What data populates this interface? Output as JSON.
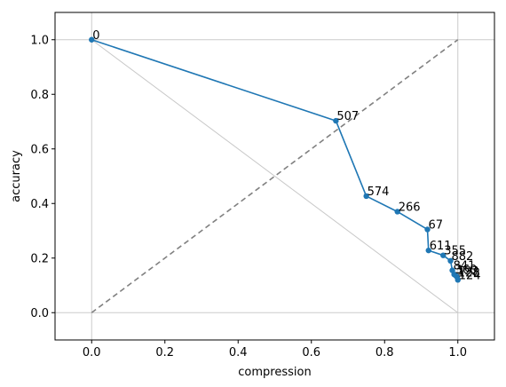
{
  "chart_data": {
    "type": "line",
    "xlabel": "compression",
    "ylabel": "accuracy",
    "xlim": [
      -0.1,
      1.1
    ],
    "ylim": [
      -0.1,
      1.1
    ],
    "xticks": [
      "0.0",
      "0.2",
      "0.4",
      "0.6",
      "0.8",
      "1.0"
    ],
    "yticks": [
      "0.0",
      "0.2",
      "0.4",
      "0.6",
      "0.8",
      "1.0"
    ],
    "grid": "light gray lines at x=0, x=1, y=0, y=1",
    "colors": {
      "series": "#1f77b4",
      "reference_dashed": "#808080",
      "reference_thin": "#c8c8c8"
    },
    "reference_lines": [
      {
        "style": "dashed",
        "from": [
          0,
          0
        ],
        "to": [
          1,
          1
        ]
      },
      {
        "style": "solid-thin",
        "from": [
          0,
          1
        ],
        "to": [
          1,
          0
        ]
      }
    ],
    "series": [
      {
        "points": [
          {
            "x": 0.0,
            "y": 1.0,
            "label": "0"
          },
          {
            "x": 0.667,
            "y": 0.703,
            "label": "507"
          },
          {
            "x": 0.75,
            "y": 0.427,
            "label": "574"
          },
          {
            "x": 0.835,
            "y": 0.37,
            "label": "266"
          },
          {
            "x": 0.917,
            "y": 0.305,
            "label": "67"
          },
          {
            "x": 0.92,
            "y": 0.228,
            "label": "611"
          },
          {
            "x": 0.96,
            "y": 0.21,
            "label": "355"
          },
          {
            "x": 0.98,
            "y": 0.19,
            "label": "882"
          },
          {
            "x": 0.985,
            "y": 0.155,
            "label": "841"
          },
          {
            "x": 0.99,
            "y": 0.14,
            "label": "360"
          },
          {
            "x": 0.995,
            "y": 0.135,
            "label": "192"
          },
          {
            "x": 0.998,
            "y": 0.13,
            "label": "128"
          },
          {
            "x": 1.0,
            "y": 0.12,
            "label": "124"
          }
        ]
      }
    ]
  }
}
